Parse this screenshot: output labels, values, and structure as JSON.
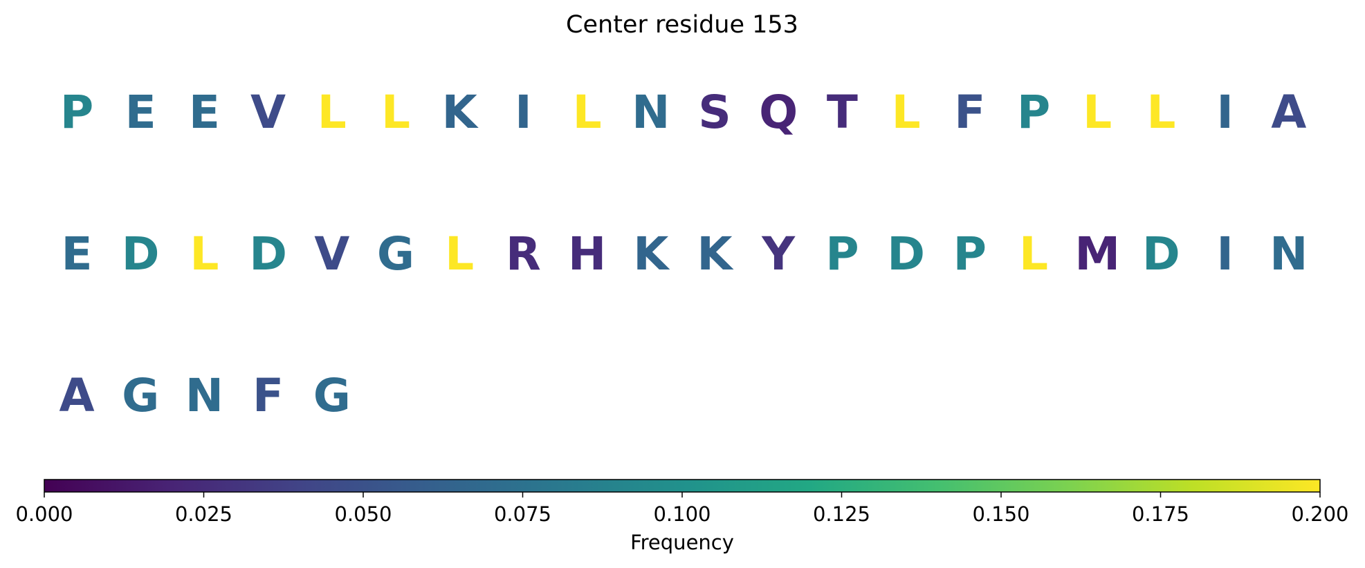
{
  "chart_data": {
    "type": "heatmap",
    "title": "Center residue 153",
    "layout": "sequence-logo-grid",
    "columns_per_row": 20,
    "residues": [
      {
        "letter": "P",
        "value": 0.09
      },
      {
        "letter": "E",
        "value": 0.07
      },
      {
        "letter": "E",
        "value": 0.07
      },
      {
        "letter": "V",
        "value": 0.045
      },
      {
        "letter": "L",
        "value": 0.2
      },
      {
        "letter": "L",
        "value": 0.2
      },
      {
        "letter": "K",
        "value": 0.065
      },
      {
        "letter": "I",
        "value": 0.065
      },
      {
        "letter": "L",
        "value": 0.2
      },
      {
        "letter": "N",
        "value": 0.07
      },
      {
        "letter": "S",
        "value": 0.025
      },
      {
        "letter": "Q",
        "value": 0.02
      },
      {
        "letter": "T",
        "value": 0.025
      },
      {
        "letter": "L",
        "value": 0.2
      },
      {
        "letter": "F",
        "value": 0.05
      },
      {
        "letter": "P",
        "value": 0.09
      },
      {
        "letter": "L",
        "value": 0.2
      },
      {
        "letter": "L",
        "value": 0.2
      },
      {
        "letter": "I",
        "value": 0.065
      },
      {
        "letter": "A",
        "value": 0.045
      },
      {
        "letter": "E",
        "value": 0.07
      },
      {
        "letter": "D",
        "value": 0.09
      },
      {
        "letter": "L",
        "value": 0.2
      },
      {
        "letter": "D",
        "value": 0.09
      },
      {
        "letter": "V",
        "value": 0.045
      },
      {
        "letter": "G",
        "value": 0.07
      },
      {
        "letter": "L",
        "value": 0.2
      },
      {
        "letter": "R",
        "value": 0.025
      },
      {
        "letter": "H",
        "value": 0.025
      },
      {
        "letter": "K",
        "value": 0.065
      },
      {
        "letter": "K",
        "value": 0.065
      },
      {
        "letter": "Y",
        "value": 0.03
      },
      {
        "letter": "P",
        "value": 0.09
      },
      {
        "letter": "D",
        "value": 0.09
      },
      {
        "letter": "P",
        "value": 0.09
      },
      {
        "letter": "L",
        "value": 0.2
      },
      {
        "letter": "M",
        "value": 0.02
      },
      {
        "letter": "D",
        "value": 0.09
      },
      {
        "letter": "I",
        "value": 0.065
      },
      {
        "letter": "N",
        "value": 0.07
      },
      {
        "letter": "A",
        "value": 0.045
      },
      {
        "letter": "G",
        "value": 0.07
      },
      {
        "letter": "N",
        "value": 0.07
      },
      {
        "letter": "F",
        "value": 0.05
      },
      {
        "letter": "G",
        "value": 0.07
      }
    ],
    "colorbar": {
      "label": "Frequency",
      "colormap": "viridis",
      "range": [
        0,
        0.2
      ],
      "ticks": [
        0.0,
        0.025,
        0.05,
        0.075,
        0.1,
        0.125,
        0.15,
        0.175,
        0.2
      ],
      "tick_labels": [
        "0.000",
        "0.025",
        "0.050",
        "0.075",
        "0.100",
        "0.125",
        "0.150",
        "0.175",
        "0.200"
      ],
      "orientation": "horizontal",
      "placement": "bottom"
    }
  }
}
